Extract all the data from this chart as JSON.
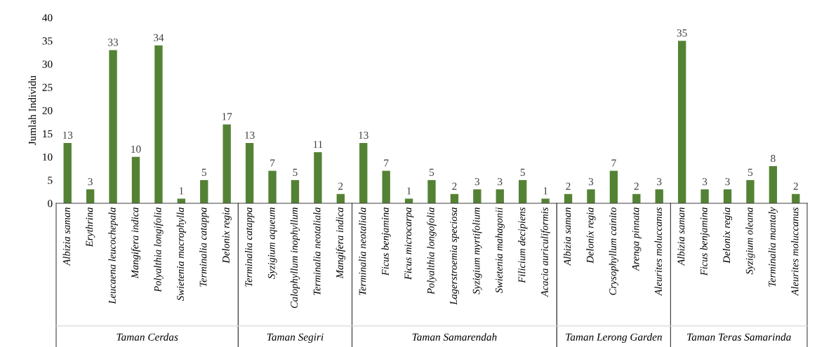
{
  "chart_data": {
    "type": "bar",
    "ylabel": "Jumlah Individu",
    "ylim": [
      0,
      40
    ],
    "yticks": [
      0,
      5,
      10,
      15,
      20,
      25,
      30,
      35,
      40
    ],
    "grid": false,
    "legend": false,
    "annotations": [
      "Taman Cerdas",
      "Taman Segiri",
      "Taman Samarendah",
      "Taman Lerong Garden",
      "Taman Teras Samarinda"
    ],
    "data_labels": true,
    "categories": [
      "Albizia saman",
      "Erythrina",
      "Leucaena leucochepala",
      "Mangifera indica",
      "Polyalthia longifolia",
      "Swietenia macrophylla",
      "Terminalia catappa",
      "Delonix regia",
      "Terminalia catappa",
      "Syzigium aqueum",
      "Calophyllum inophyllum",
      "Terminalia neotaliala",
      "Mangifera indica",
      "Terminalia neotaliala",
      "Ficus benjamina",
      "Ficus microcarpa",
      "Polyalthia longofolia",
      "Lagerstroemia speciosa",
      "Syzigium myrtifolium",
      "Swietenia mahagonii",
      "Filicium decipiens",
      "Acacia auriculiformis",
      "Albizia saman",
      "Delonix regia",
      "Crysophyllum cainito",
      "Arenga pinnata",
      "Aleurites moluccanus",
      "Albizia saman",
      "Ficus benjamina",
      "Delonix regia",
      "Syzigium oleana",
      "Terminalia mantaly",
      "Aleurites moluccanus"
    ],
    "series": [
      {
        "color": "#548235",
        "values": [
          13,
          3,
          33,
          10,
          34,
          1,
          5,
          17,
          null,
          null,
          null,
          null,
          null,
          null,
          null,
          null,
          null,
          null,
          null,
          null,
          null,
          null,
          null,
          null,
          null,
          null,
          null,
          null,
          null,
          null,
          null,
          null,
          null
        ]
      },
      {
        "color": "#548235",
        "values": [
          null,
          null,
          null,
          null,
          null,
          null,
          null,
          null,
          13,
          7,
          5,
          11,
          2,
          null,
          null,
          null,
          null,
          null,
          null,
          null,
          null,
          null,
          null,
          null,
          null,
          null,
          null,
          null,
          null,
          null,
          null,
          null,
          null
        ]
      },
      {
        "color": "#548235",
        "values": [
          null,
          null,
          null,
          null,
          null,
          null,
          null,
          null,
          null,
          null,
          null,
          null,
          null,
          13,
          7,
          1,
          5,
          2,
          3,
          3,
          5,
          1,
          null,
          null,
          null,
          null,
          null,
          null,
          null,
          null,
          null,
          null,
          null
        ]
      },
      {
        "color": "#548235",
        "values": [
          null,
          null,
          null,
          null,
          null,
          null,
          null,
          null,
          null,
          null,
          null,
          null,
          null,
          null,
          null,
          null,
          null,
          null,
          null,
          null,
          null,
          null,
          2,
          3,
          7,
          2,
          3,
          null,
          null,
          null,
          null,
          null,
          null
        ]
      },
      {
        "color": "#548235",
        "values": [
          null,
          null,
          null,
          null,
          null,
          null,
          null,
          null,
          null,
          null,
          null,
          null,
          null,
          null,
          null,
          null,
          null,
          null,
          null,
          null,
          null,
          null,
          null,
          null,
          null,
          null,
          null,
          35,
          3,
          3,
          5,
          8,
          2
        ]
      }
    ]
  }
}
